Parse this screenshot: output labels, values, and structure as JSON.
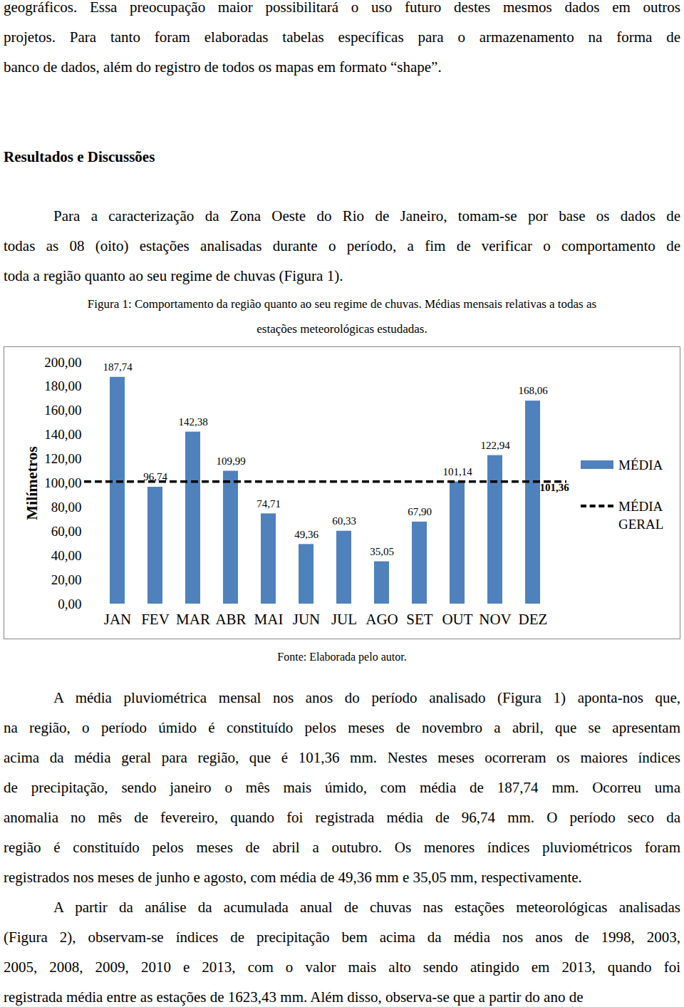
{
  "blocks": [
    {
      "kind": "paragraph",
      "lines": [
        "geográficos. Essa preocupação maior possibilitará o uso futuro destes mesmos dados em outros",
        "projetos. Para tanto foram elaboradas tabelas específicas para o armazenamento na forma de",
        "banco de dados, além do registro de todos os mapas em formato “shape”."
      ]
    },
    {
      "kind": "heading",
      "lines": [
        "Resultados e Discussões"
      ]
    },
    {
      "kind": "paragraph",
      "lines": [
        "Para a caracterização da Zona Oeste do Rio de Janeiro, tomam-se por base os dados de",
        "todas as 08 (oito) estações analisadas durante o período, a fim de verificar o comportamento de",
        "toda a região quanto ao seu regime de chuvas (Figura 1)."
      ]
    },
    {
      "kind": "caption",
      "lines": [
        "Figura 1: Comportamento da região quanto ao seu regime de chuvas. Médias mensais relativas a todas as",
        "estações meteorológicas estudadas."
      ]
    },
    {
      "kind": "figure"
    },
    {
      "kind": "caption",
      "lines": [
        "Fonte: Elaborada pelo autor."
      ]
    },
    {
      "kind": "paragraph",
      "lines": [
        "A média pluviométrica mensal nos anos do período analisado (Figura 1) aponta-nos que,",
        "na região, o período úmido é constituído pelos meses de novembro a abril, que se apresentam",
        "acima da média geral para região, que é 101,36 mm. Nestes meses ocorreram os maiores índices",
        "de precipitação, sendo janeiro o mês mais úmido, com média de 187,74 mm. Ocorreu uma",
        "anomalia no mês de fevereiro, quando foi registrada média de 96,74 mm. O período seco da",
        "região é constituído pelos meses de abril a outubro. Os menores índices pluviométricos foram",
        "registrados nos meses de junho e agosto, com média de 49,36 mm e 35,05 mm, respectivamente."
      ]
    },
    {
      "kind": "paragraph",
      "lines": [
        "A partir da análise da acumulada anual de chuvas nas estações meteorológicas analisadas",
        "(Figura 2), observam-se índices de precipitação bem acima da média nos anos de 1998, 2003,",
        "2005, 2008, 2009, 2010 e 2013, com o valor mais alto sendo atingido em 2013, quando foi",
        "registrada média entre as estações de 1623,43 mm. Além disso, observa-se que a partir do ano de"
      ]
    }
  ],
  "chart_data": {
    "type": "bar",
    "y_label": "Milímetros",
    "categories": [
      "JAN",
      "FEV",
      "MAR",
      "ABR",
      "MAI",
      "JUN",
      "JUL",
      "AGO",
      "SET",
      "OUT",
      "NOV",
      "DEZ"
    ],
    "series": [
      {
        "name": "MÉDIA",
        "color": "#4f81bd",
        "values": [
          187.74,
          96.74,
          142.38,
          109.99,
          74.71,
          49.36,
          60.33,
          35.05,
          67.9,
          101.14,
          122.94,
          168.06
        ],
        "value_labels": [
          "187,74",
          "96,74",
          "142,38",
          "109,99",
          "74,71",
          "49,36",
          "60,33",
          "35,05",
          "67,90",
          "101,14",
          "122,94",
          "168,06"
        ]
      }
    ],
    "reference_lines": [
      {
        "name": "MÉDIA GERAL",
        "value": 101.36,
        "label": "101,36",
        "color": "#000000",
        "line_style": "dashed"
      }
    ],
    "ylim": [
      0,
      200
    ],
    "yticks": [
      {
        "value": 0,
        "label": "0,00"
      },
      {
        "value": 20,
        "label": "20,00"
      },
      {
        "value": 40,
        "label": "40,00"
      },
      {
        "value": 60,
        "label": "60,00"
      },
      {
        "value": 80,
        "label": "80,00"
      },
      {
        "value": 100,
        "label": "100,00"
      },
      {
        "value": 120,
        "label": "120,00"
      },
      {
        "value": 140,
        "label": "140,00"
      },
      {
        "value": 160,
        "label": "160,00"
      },
      {
        "value": 180,
        "label": "180,00"
      },
      {
        "value": 200,
        "label": "200,00"
      }
    ],
    "grid": false,
    "data_labels": true,
    "legend": "right"
  }
}
